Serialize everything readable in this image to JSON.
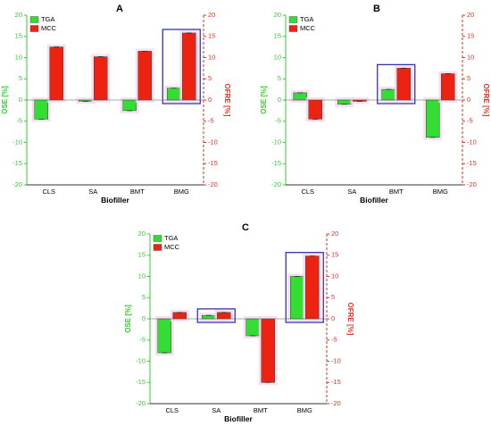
{
  "chart_data": [
    {
      "panel": "A",
      "type": "bar",
      "categories": [
        "CLS",
        "SA",
        "BMT",
        "BMG"
      ],
      "xlabel": "Biofiller",
      "ylabel_left": "OSE [%]",
      "ylabel_right": "OFRE [%]",
      "ylim": [
        -20,
        20
      ],
      "yticks": [
        -20,
        -15,
        -10,
        -5,
        0,
        5,
        10,
        15,
        20
      ],
      "legend_position": "top-left",
      "highlight_category": "BMG",
      "series": [
        {
          "name": "TGA",
          "color": "#33dd33",
          "values": [
            -4.5,
            -0.3,
            -2.5,
            2.8
          ]
        },
        {
          "name": "MCC",
          "color": "#ee2211",
          "values": [
            12.5,
            10.2,
            11.5,
            15.8
          ]
        }
      ]
    },
    {
      "panel": "B",
      "type": "bar",
      "categories": [
        "CLS",
        "SA",
        "BMT",
        "BMG"
      ],
      "xlabel": "Biofiller",
      "ylabel_left": "OSE [%]",
      "ylabel_right": "OFRE [%]",
      "ylim": [
        -20,
        20
      ],
      "yticks": [
        -20,
        -15,
        -10,
        -5,
        0,
        5,
        10,
        15,
        20
      ],
      "legend_position": "top-left",
      "highlight_category": "BMT",
      "series": [
        {
          "name": "TGA",
          "color": "#33dd33",
          "values": [
            1.7,
            -1.0,
            2.5,
            -8.8
          ]
        },
        {
          "name": "MCC",
          "color": "#ee2211",
          "values": [
            -4.5,
            -0.3,
            7.5,
            6.2
          ]
        }
      ]
    },
    {
      "panel": "C",
      "type": "bar",
      "categories": [
        "CLS",
        "SA",
        "BMT",
        "BMG"
      ],
      "xlabel": "Biofiller",
      "ylabel_left": "OSE [%]",
      "ylabel_right": "OFRE [%]",
      "ylim": [
        -20,
        20
      ],
      "yticks": [
        -20,
        -15,
        -10,
        -5,
        0,
        5,
        10,
        15,
        20
      ],
      "legend_position": "top-left",
      "highlight_category": "SA",
      "highlight_category_2": "BMG",
      "series": [
        {
          "name": "TGA",
          "color": "#33dd33",
          "values": [
            -8.0,
            0.8,
            -4.0,
            10.0
          ]
        },
        {
          "name": "MCC",
          "color": "#ee2211",
          "values": [
            1.5,
            1.5,
            -15.0,
            14.8
          ]
        }
      ]
    }
  ]
}
